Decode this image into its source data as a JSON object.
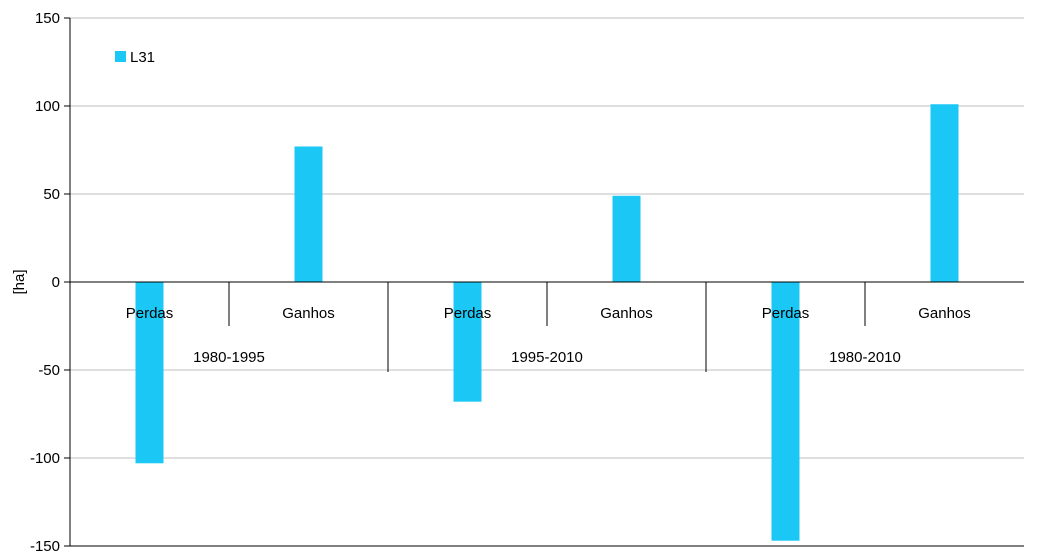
{
  "chart_data": {
    "type": "bar",
    "categories": [
      "Perdas",
      "Ganhos",
      "Perdas",
      "Ganhos",
      "Perdas",
      "Ganhos"
    ],
    "groups": [
      "1980-1995",
      "1995-2010",
      "1980-2010"
    ],
    "series": [
      {
        "name": "L31",
        "values": [
          -103,
          77,
          -68,
          49,
          -147,
          101
        ],
        "color": "#1BC8F5"
      }
    ],
    "ylabel": "[ha]",
    "ylim": [
      -150,
      150
    ],
    "yticks": [
      "150",
      "100",
      "50",
      "0",
      "-50",
      "-100",
      "-150"
    ],
    "grid": true,
    "legend_position": "top-left"
  }
}
